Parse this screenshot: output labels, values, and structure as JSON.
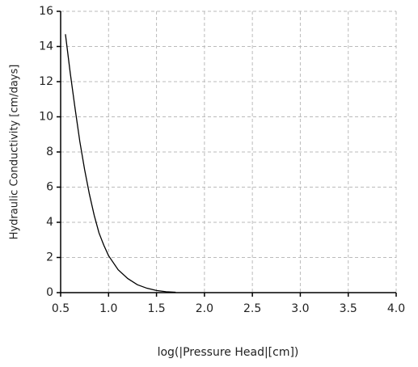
{
  "chart_data": {
    "type": "line",
    "x_label": "log(|Pressure Head|[cm])",
    "y_label": "Hydraulic Conductivity  [cm/days]",
    "x": [
      0.55,
      0.6,
      0.65,
      0.7,
      0.75,
      0.8,
      0.85,
      0.9,
      0.95,
      1.0,
      1.1,
      1.2,
      1.3,
      1.4,
      1.5,
      1.6,
      1.7
    ],
    "series": [
      {
        "name": "Hydraulic Conductivity",
        "color": "#000000",
        "values": [
          14.7,
          12.5,
          10.5,
          8.6,
          7.0,
          5.6,
          4.4,
          3.4,
          2.7,
          2.1,
          1.3,
          0.8,
          0.45,
          0.25,
          0.12,
          0.05,
          0.02
        ]
      }
    ],
    "xlim": [
      0.5,
      4.0
    ],
    "xticks": [
      0.5,
      {
        "value": 1,
        "label": "1.0"
      },
      1.5,
      {
        "value": 2,
        "label": "2.0"
      },
      2.5,
      {
        "value": 3,
        "label": "3.0"
      },
      3.5,
      {
        "value": 4,
        "label": "4.0"
      }
    ],
    "ylim": [
      0,
      16
    ],
    "yticks": [
      0,
      2,
      4,
      6,
      8,
      10,
      12,
      14,
      16
    ],
    "grid": true
  }
}
